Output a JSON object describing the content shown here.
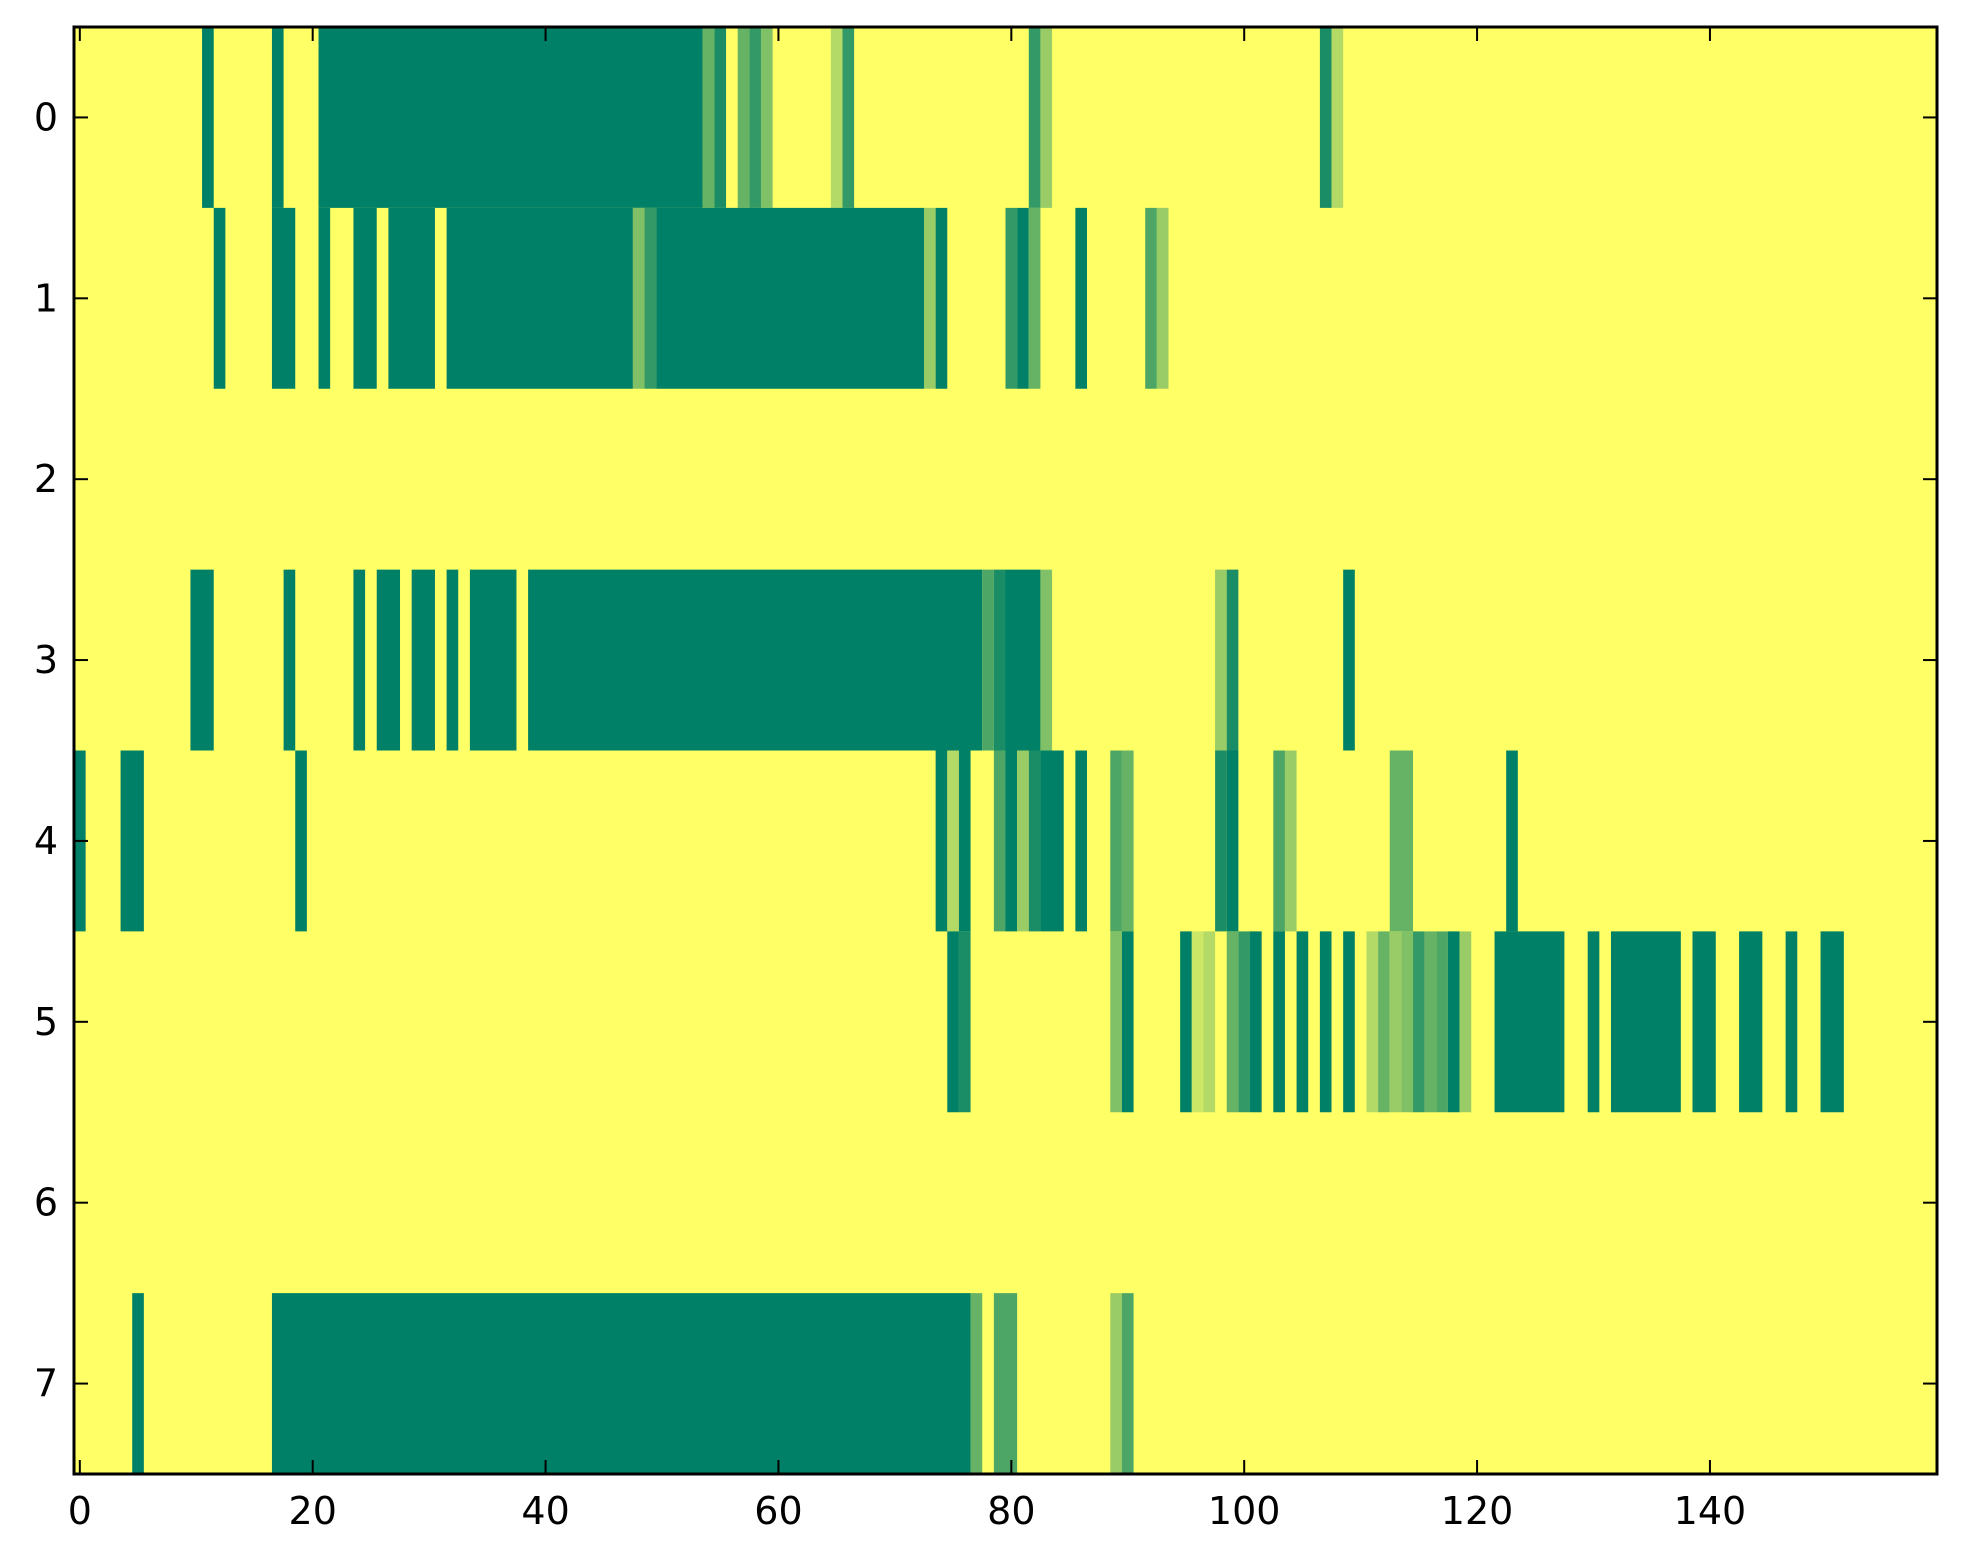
{
  "chart_data": {
    "type": "heatmap",
    "title": "",
    "xlabel": "",
    "ylabel": "",
    "xlim": [
      -0.5,
      159.5
    ],
    "ylim": [
      7.5,
      -0.5
    ],
    "xticks": [
      0,
      20,
      40,
      60,
      80,
      100,
      120,
      140
    ],
    "yticks": [
      0,
      1,
      2,
      3,
      4,
      5,
      6,
      7
    ],
    "grid": false,
    "legend": "none",
    "colormap": "summer_r",
    "colors": {
      "low": "#ffff66",
      "high": "#008066",
      "scale": [
        "#ffff66",
        "#e6f266",
        "#cce666",
        "#b3d966",
        "#99cc66",
        "#80bf66",
        "#66b366",
        "#4da666",
        "#339966",
        "#1a8c66",
        "#008066"
      ]
    },
    "value_range": [
      0,
      1
    ],
    "rows": [
      [
        [
          11,
          1.0
        ],
        [
          17,
          1.0
        ],
        [
          21,
          53,
          1.0
        ],
        [
          54,
          0.6
        ],
        [
          55,
          0.9
        ],
        [
          57,
          0.6
        ],
        [
          58,
          0.8
        ],
        [
          59,
          0.5
        ],
        [
          65,
          0.3
        ],
        [
          66,
          0.8
        ],
        [
          82,
          0.8
        ],
        [
          83,
          0.4
        ],
        [
          107,
          0.9
        ],
        [
          108,
          0.3
        ]
      ],
      [
        [
          12,
          1.0
        ],
        [
          17,
          18,
          1.0
        ],
        [
          21,
          1.0
        ],
        [
          24,
          25,
          1.0
        ],
        [
          27,
          30,
          1.0
        ],
        [
          32,
          47,
          1.0
        ],
        [
          48,
          0.5
        ],
        [
          49,
          0.8
        ],
        [
          50,
          72,
          1.0
        ],
        [
          73,
          0.4
        ],
        [
          74,
          1.0
        ],
        [
          80,
          0.8
        ],
        [
          81,
          1.0
        ],
        [
          82,
          0.6
        ],
        [
          86,
          1.0
        ],
        [
          92,
          0.7
        ],
        [
          93,
          0.4
        ]
      ],
      [],
      [
        [
          10,
          11,
          1.0
        ],
        [
          18,
          1.0
        ],
        [
          24,
          1.0
        ],
        [
          26,
          27,
          1.0
        ],
        [
          29,
          30,
          1.0
        ],
        [
          32,
          1.0
        ],
        [
          34,
          37,
          1.0
        ],
        [
          39,
          77,
          1.0
        ],
        [
          78,
          0.7
        ],
        [
          79,
          0.9
        ],
        [
          80,
          82,
          1.0
        ],
        [
          83,
          0.5
        ],
        [
          98,
          0.4
        ],
        [
          99,
          0.9
        ],
        [
          109,
          1.0
        ]
      ],
      [
        [
          0,
          1.0
        ],
        [
          4,
          5,
          1.0
        ],
        [
          19,
          1.0
        ],
        [
          74,
          1.0
        ],
        [
          75,
          0.3
        ],
        [
          76,
          1.0
        ],
        [
          79,
          0.7
        ],
        [
          80,
          1.0
        ],
        [
          81,
          0.4
        ],
        [
          82,
          0.9
        ],
        [
          83,
          84,
          1.0
        ],
        [
          86,
          1.0
        ],
        [
          89,
          0.7
        ],
        [
          90,
          0.6
        ],
        [
          98,
          0.9
        ],
        [
          99,
          1.0
        ],
        [
          103,
          0.7
        ],
        [
          104,
          0.4
        ],
        [
          113,
          114,
          0.6
        ],
        [
          123,
          1.0
        ]
      ],
      [
        [
          75,
          1.0
        ],
        [
          76,
          0.9
        ],
        [
          89,
          0.5
        ],
        [
          90,
          1.0
        ],
        [
          95,
          1.0
        ],
        [
          96,
          0.2
        ],
        [
          97,
          0.3
        ],
        [
          99,
          0.6
        ],
        [
          100,
          0.8
        ],
        [
          101,
          1.0
        ],
        [
          103,
          1.0
        ],
        [
          105,
          1.0
        ],
        [
          107,
          1.0
        ],
        [
          109,
          1.0
        ],
        [
          111,
          0.3
        ],
        [
          112,
          0.6
        ],
        [
          113,
          0.4
        ],
        [
          114,
          0.5
        ],
        [
          115,
          0.8
        ],
        [
          116,
          0.6
        ],
        [
          117,
          0.7
        ],
        [
          118,
          1.0
        ],
        [
          119,
          0.4
        ],
        [
          122,
          127,
          1.0
        ],
        [
          130,
          1.0
        ],
        [
          132,
          137,
          1.0
        ],
        [
          139,
          140,
          1.0
        ],
        [
          143,
          144,
          1.0
        ],
        [
          147,
          1.0
        ],
        [
          150,
          151,
          1.0
        ]
      ],
      [],
      [
        [
          5,
          1.0
        ],
        [
          17,
          76,
          1.0
        ],
        [
          77,
          0.6
        ],
        [
          79,
          80,
          0.7
        ],
        [
          89,
          0.4
        ],
        [
          90,
          0.7
        ]
      ]
    ]
  }
}
